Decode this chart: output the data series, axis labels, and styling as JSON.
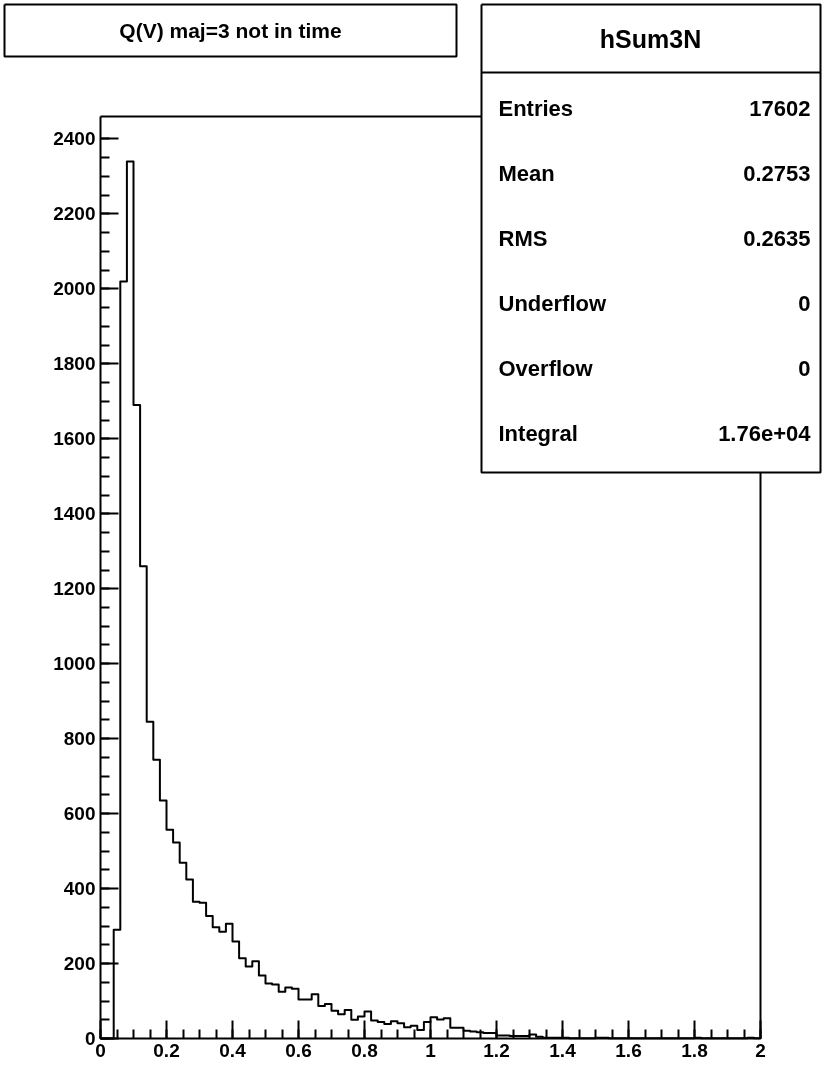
{
  "chart_data": {
    "type": "histogram",
    "title": "Q(V) maj=3 not in time",
    "bins": [
      0,
      0.02,
      0.04,
      0.06,
      0.08,
      0.1,
      0.12,
      0.14,
      0.16,
      0.18,
      0.2,
      0.22,
      0.24,
      0.26,
      0.28,
      0.3,
      0.32,
      0.34,
      0.36,
      0.38,
      0.4,
      0.42,
      0.44,
      0.46,
      0.48,
      0.5,
      0.52,
      0.54,
      0.56,
      0.58,
      0.6,
      0.62,
      0.64,
      0.66,
      0.68,
      0.7,
      0.72,
      0.74,
      0.76,
      0.78,
      0.8,
      0.82,
      0.84,
      0.86,
      0.88,
      0.9,
      0.92,
      0.94,
      0.96,
      0.98,
      1,
      1.02,
      1.04,
      1.06,
      1.08,
      1.1,
      1.12,
      1.14,
      1.16,
      1.18,
      1.2,
      1.22,
      1.24,
      1.26,
      1.28,
      1.3,
      1.32,
      1.34,
      1.36,
      1.38,
      1.4,
      1.42,
      1.44,
      1.46,
      1.48,
      1.5,
      1.52,
      1.54,
      1.56,
      1.58,
      1.6,
      1.62,
      1.64,
      1.66,
      1.68,
      1.7,
      1.72,
      1.74,
      1.76,
      1.78,
      1.8,
      1.82,
      1.84,
      1.86,
      1.88,
      1.9,
      1.92,
      1.94,
      1.96,
      1.98,
      2
    ],
    "values": [
      0,
      0,
      290,
      2020,
      2340,
      1690,
      1260,
      845,
      744,
      635,
      557,
      523,
      469,
      424,
      365,
      362,
      327,
      297,
      285,
      306,
      259,
      214,
      192,
      206,
      168,
      147,
      144,
      125,
      136,
      133,
      104,
      104,
      118,
      87,
      92,
      74,
      65,
      76,
      50,
      59,
      72,
      48,
      44,
      39,
      46,
      41,
      30,
      34,
      23,
      44,
      57,
      51,
      54,
      29,
      29,
      21,
      19,
      17,
      15,
      15,
      8,
      8,
      7,
      7,
      7,
      11,
      5,
      2,
      2,
      2,
      2,
      1,
      1,
      1,
      1,
      2,
      2,
      1,
      1,
      1,
      1,
      1,
      1,
      1,
      1,
      1,
      1,
      1,
      1,
      1,
      2,
      1,
      1,
      1,
      1,
      1,
      1,
      1,
      2,
      1
    ],
    "color": "#000000",
    "xlim": [
      0,
      2
    ],
    "ylim": [
      0,
      2460
    ],
    "xticks": [
      0,
      0.2,
      0.4,
      0.6,
      0.8,
      1,
      1.2,
      1.4,
      1.6,
      1.8,
      2
    ],
    "yticks": [
      0,
      200,
      400,
      600,
      800,
      1000,
      1200,
      1400,
      1600,
      1800,
      2000,
      2200,
      2400
    ],
    "annotations": [
      "hSum3N",
      "Entries",
      "17602",
      "Mean",
      "0.2753",
      "RMS",
      "0.2635",
      "Underflow",
      "0",
      "Overflow",
      "0",
      "Integral",
      "1.76e+04"
    ]
  }
}
